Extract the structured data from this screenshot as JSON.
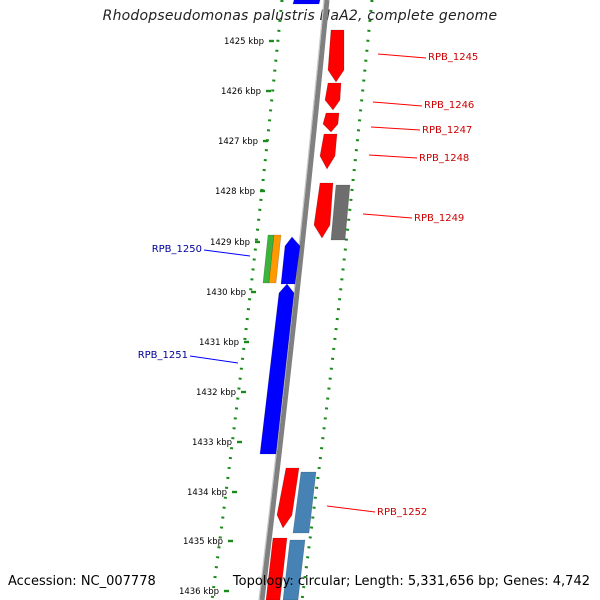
{
  "title": "Rhodopseudomonas palustris HaA2, complete genome",
  "accession": "Accession: NC_007778",
  "topology": "Topology: circular; Length: 5,331,656 bp; Genes: 4,742",
  "colors": {
    "forward": "#ff0000",
    "reverse": "#0000ff",
    "other": "#6e6e6e",
    "rna": "#4682b4",
    "green": "#3cb43c",
    "orange": "#ff9900",
    "backbone": "#808080",
    "ticks": "#1a8a1a",
    "forward_label": "#cc0000",
    "reverse_label": "#000099"
  },
  "kbp_ticks": [
    "1425 kbp",
    "1426 kbp",
    "1427 kbp",
    "1428 kbp",
    "1429 kbp",
    "1430 kbp",
    "1431 kbp",
    "1432 kbp",
    "1433 kbp",
    "1434 kbp",
    "1435 kbp",
    "1436 kbp"
  ],
  "gene_labels": [
    {
      "name": "RPB_1245",
      "strand": "forward"
    },
    {
      "name": "RPB_1246",
      "strand": "forward"
    },
    {
      "name": "RPB_1247",
      "strand": "forward"
    },
    {
      "name": "RPB_1248",
      "strand": "forward"
    },
    {
      "name": "RPB_1249",
      "strand": "forward"
    },
    {
      "name": "RPB_1250",
      "strand": "reverse"
    },
    {
      "name": "RPB_1251",
      "strand": "reverse"
    },
    {
      "name": "RPB_1252",
      "strand": "forward"
    }
  ]
}
